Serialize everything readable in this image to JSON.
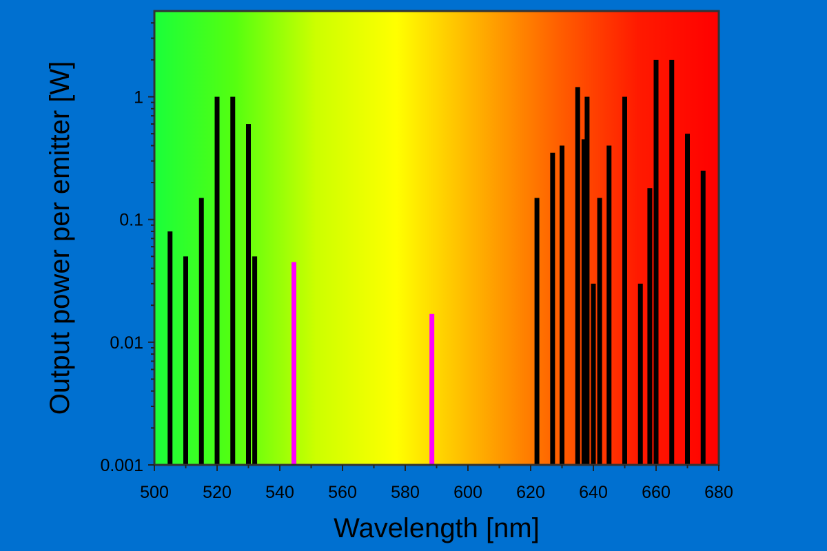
{
  "chart_data": {
    "type": "bar",
    "title": "",
    "xlabel": "Wavelength [nm]",
    "ylabel": "Output power per emitter [W]",
    "xlim": [
      500,
      680
    ],
    "ylim": [
      0.001,
      5
    ],
    "yscale": "log",
    "grid": false,
    "x_ticks": [
      "500",
      "520",
      "540",
      "560",
      "580",
      "600",
      "620",
      "640",
      "660",
      "680"
    ],
    "y_ticks": [
      "0.001",
      "0.01",
      "0.1",
      "1"
    ],
    "background_gradient": [
      "#1aff3a",
      "#55ff10",
      "#ccff00",
      "#ffff00",
      "#ffb000",
      "#ff6000",
      "#ff1a00",
      "#ff0000"
    ],
    "series": [
      {
        "color": "#000000",
        "points": [
          {
            "x": 505,
            "y": 0.08
          },
          {
            "x": 510,
            "y": 0.05
          },
          {
            "x": 515,
            "y": 0.15
          },
          {
            "x": 520,
            "y": 1.0
          },
          {
            "x": 525,
            "y": 1.0
          },
          {
            "x": 530,
            "y": 0.6
          },
          {
            "x": 532,
            "y": 0.05
          },
          {
            "x": 622,
            "y": 0.15
          },
          {
            "x": 627,
            "y": 0.35
          },
          {
            "x": 630,
            "y": 0.4
          },
          {
            "x": 635,
            "y": 1.2
          },
          {
            "x": 637,
            "y": 0.45
          },
          {
            "x": 638,
            "y": 1.0
          },
          {
            "x": 640,
            "y": 0.03
          },
          {
            "x": 642,
            "y": 0.15
          },
          {
            "x": 645,
            "y": 0.4
          },
          {
            "x": 650,
            "y": 1.0
          },
          {
            "x": 655,
            "y": 0.03
          },
          {
            "x": 658,
            "y": 0.18
          },
          {
            "x": 660,
            "y": 2.0
          },
          {
            "x": 665,
            "y": 2.0
          },
          {
            "x": 670,
            "y": 0.5
          },
          {
            "x": 675,
            "y": 0.25
          }
        ]
      },
      {
        "color": "#ff00ff",
        "points": [
          {
            "x": 544.5,
            "y": 0.045
          },
          {
            "x": 588.5,
            "y": 0.017
          }
        ]
      }
    ]
  }
}
